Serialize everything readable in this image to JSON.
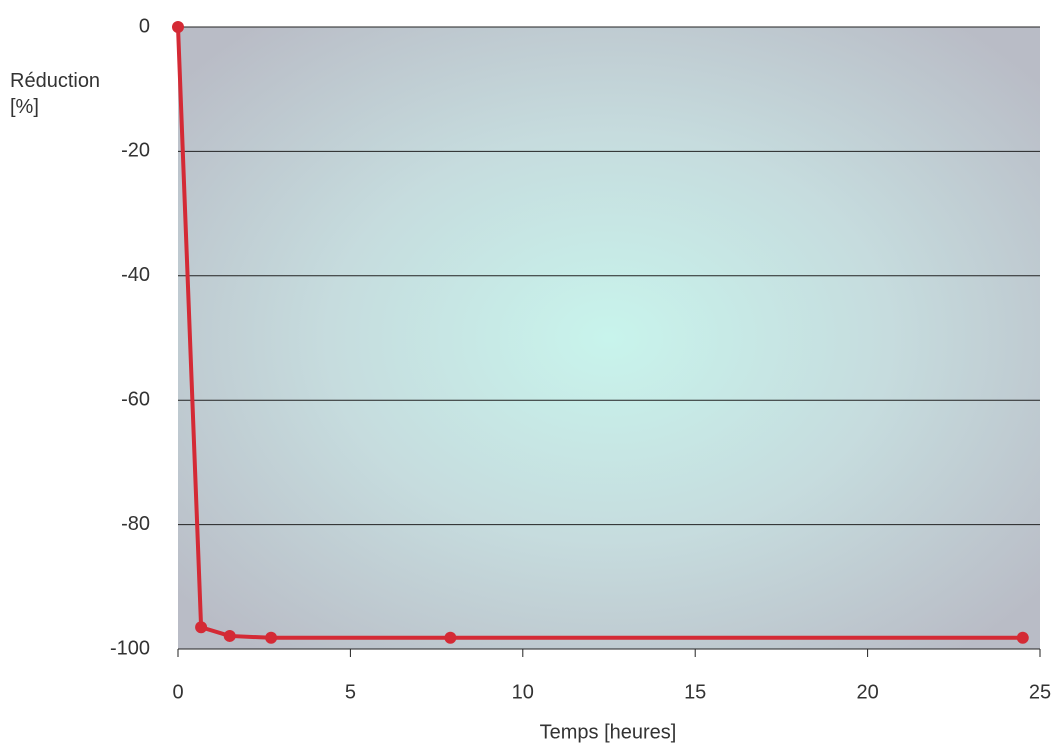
{
  "chart_data": {
    "type": "line",
    "y_label": "Réduction [%]",
    "x_label": "Temps [heures]",
    "x": [
      0,
      0.67,
      1.5,
      2.7,
      7.9,
      24.5
    ],
    "series": [
      {
        "name": "Réduction",
        "color": "#d42a35",
        "values": [
          0,
          -96.5,
          -97.9,
          -98.2,
          -98.2,
          -98.2
        ]
      }
    ],
    "xlim": [
      0,
      25
    ],
    "xticks": [
      0,
      5,
      10,
      15,
      20,
      25
    ],
    "ylim": [
      -100,
      0
    ],
    "yticks": [
      0,
      -20,
      -40,
      -60,
      -80,
      -100
    ],
    "grid": true
  }
}
